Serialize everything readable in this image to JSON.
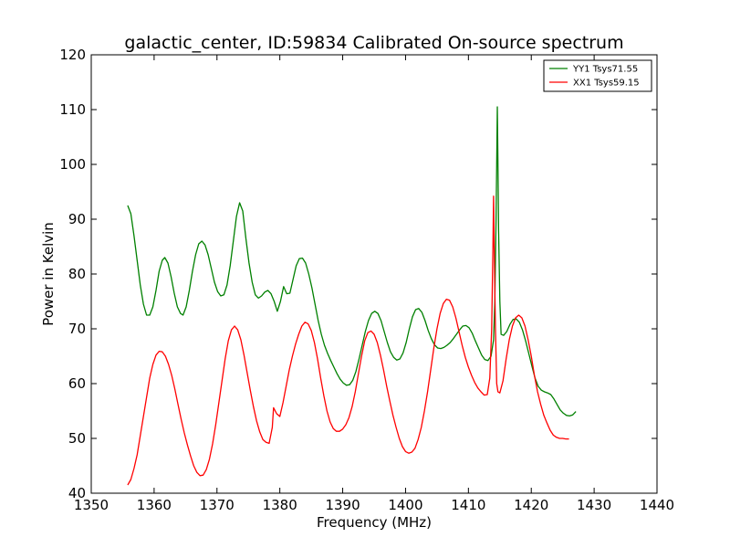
{
  "chart_data": {
    "type": "line",
    "title": "galactic_center, ID:59834 Calibrated On-source spectrum",
    "xlabel": "Frequency (MHz)",
    "ylabel": "Power in Kelvin",
    "xlim": [
      1350,
      1440
    ],
    "ylim": [
      40,
      120
    ],
    "xticks": [
      1350,
      1360,
      1370,
      1380,
      1390,
      1400,
      1410,
      1420,
      1430,
      1440
    ],
    "yticks": [
      40,
      50,
      60,
      70,
      80,
      90,
      100,
      110,
      120
    ],
    "grid": false,
    "legend_position": "top-right",
    "series": [
      {
        "name": "YY1 Tsys71.55",
        "color": "#008000",
        "points": [
          [
            1355.8,
            92.5
          ],
          [
            1356.3,
            91.0
          ],
          [
            1356.8,
            87.0
          ],
          [
            1357.3,
            82.5
          ],
          [
            1357.8,
            78.0
          ],
          [
            1358.3,
            74.5
          ],
          [
            1358.8,
            72.5
          ],
          [
            1359.3,
            72.5
          ],
          [
            1359.8,
            74.0
          ],
          [
            1360.3,
            77.0
          ],
          [
            1360.8,
            80.5
          ],
          [
            1361.3,
            82.5
          ],
          [
            1361.7,
            83.0
          ],
          [
            1362.2,
            82.0
          ],
          [
            1362.7,
            79.5
          ],
          [
            1363.2,
            76.5
          ],
          [
            1363.7,
            74.0
          ],
          [
            1364.2,
            72.8
          ],
          [
            1364.6,
            72.5
          ],
          [
            1365.1,
            74.0
          ],
          [
            1365.6,
            77.0
          ],
          [
            1366.1,
            80.5
          ],
          [
            1366.6,
            83.5
          ],
          [
            1367.1,
            85.5
          ],
          [
            1367.6,
            86.0
          ],
          [
            1368.1,
            85.3
          ],
          [
            1368.6,
            83.5
          ],
          [
            1369.1,
            81.0
          ],
          [
            1369.6,
            78.5
          ],
          [
            1370.1,
            76.8
          ],
          [
            1370.6,
            76.0
          ],
          [
            1371.1,
            76.2
          ],
          [
            1371.6,
            78.0
          ],
          [
            1372.1,
            81.5
          ],
          [
            1372.6,
            86.0
          ],
          [
            1373.1,
            90.5
          ],
          [
            1373.6,
            93.0
          ],
          [
            1374.1,
            91.5
          ],
          [
            1374.6,
            86.5
          ],
          [
            1375.1,
            82.0
          ],
          [
            1375.6,
            78.5
          ],
          [
            1376.1,
            76.2
          ],
          [
            1376.6,
            75.6
          ],
          [
            1377.1,
            76.0
          ],
          [
            1377.6,
            76.7
          ],
          [
            1378.1,
            77.0
          ],
          [
            1378.6,
            76.4
          ],
          [
            1379.1,
            75.0
          ],
          [
            1379.6,
            73.2
          ],
          [
            1380.1,
            75.0
          ],
          [
            1380.6,
            77.7
          ],
          [
            1381.1,
            76.4
          ],
          [
            1381.6,
            76.5
          ],
          [
            1382.1,
            79.0
          ],
          [
            1382.6,
            81.5
          ],
          [
            1383.1,
            82.8
          ],
          [
            1383.6,
            82.9
          ],
          [
            1384.1,
            82.0
          ],
          [
            1384.6,
            80.0
          ],
          [
            1385.1,
            77.5
          ],
          [
            1385.6,
            74.5
          ],
          [
            1386.1,
            71.5
          ],
          [
            1386.6,
            69.0
          ],
          [
            1387.1,
            67.0
          ],
          [
            1387.6,
            65.5
          ],
          [
            1388.1,
            64.2
          ],
          [
            1388.6,
            63.0
          ],
          [
            1389.1,
            61.8
          ],
          [
            1389.6,
            60.8
          ],
          [
            1390.1,
            60.1
          ],
          [
            1390.6,
            59.7
          ],
          [
            1391.1,
            59.8
          ],
          [
            1391.6,
            60.6
          ],
          [
            1392.1,
            62.2
          ],
          [
            1392.6,
            64.5
          ],
          [
            1393.1,
            67.0
          ],
          [
            1393.6,
            69.5
          ],
          [
            1394.1,
            71.5
          ],
          [
            1394.6,
            72.8
          ],
          [
            1395.1,
            73.2
          ],
          [
            1395.6,
            72.8
          ],
          [
            1396.1,
            71.5
          ],
          [
            1396.6,
            69.5
          ],
          [
            1397.1,
            67.5
          ],
          [
            1397.6,
            65.8
          ],
          [
            1398.1,
            64.8
          ],
          [
            1398.6,
            64.3
          ],
          [
            1399.1,
            64.5
          ],
          [
            1399.6,
            65.6
          ],
          [
            1400.1,
            67.5
          ],
          [
            1400.6,
            70.0
          ],
          [
            1401.1,
            72.2
          ],
          [
            1401.6,
            73.5
          ],
          [
            1402.1,
            73.7
          ],
          [
            1402.6,
            73.0
          ],
          [
            1403.1,
            71.5
          ],
          [
            1403.6,
            69.7
          ],
          [
            1404.1,
            68.2
          ],
          [
            1404.6,
            67.1
          ],
          [
            1405.1,
            66.5
          ],
          [
            1405.6,
            66.4
          ],
          [
            1406.1,
            66.6
          ],
          [
            1406.6,
            67.0
          ],
          [
            1407.1,
            67.5
          ],
          [
            1407.6,
            68.2
          ],
          [
            1408.1,
            69.0
          ],
          [
            1408.6,
            69.8
          ],
          [
            1409.1,
            70.5
          ],
          [
            1409.6,
            70.6
          ],
          [
            1410.1,
            70.2
          ],
          [
            1410.6,
            69.2
          ],
          [
            1411.1,
            67.8
          ],
          [
            1411.6,
            66.5
          ],
          [
            1412.1,
            65.2
          ],
          [
            1412.6,
            64.4
          ],
          [
            1413.1,
            64.2
          ],
          [
            1413.6,
            65.0
          ],
          [
            1414.0,
            68.0
          ],
          [
            1414.2,
            75.0
          ],
          [
            1414.4,
            90.0
          ],
          [
            1414.5,
            100.0
          ],
          [
            1414.6,
            110.5
          ],
          [
            1414.7,
            100.0
          ],
          [
            1414.8,
            88.0
          ],
          [
            1415.0,
            75.0
          ],
          [
            1415.2,
            69.0
          ],
          [
            1415.6,
            68.8
          ],
          [
            1416.1,
            69.5
          ],
          [
            1416.6,
            70.8
          ],
          [
            1417.1,
            71.7
          ],
          [
            1417.6,
            71.8
          ],
          [
            1418.1,
            71.2
          ],
          [
            1418.6,
            69.8
          ],
          [
            1419.1,
            67.8
          ],
          [
            1419.6,
            65.5
          ],
          [
            1420.1,
            63.2
          ],
          [
            1420.6,
            61.0
          ],
          [
            1421.1,
            59.5
          ],
          [
            1421.6,
            58.8
          ],
          [
            1422.1,
            58.5
          ],
          [
            1422.6,
            58.3
          ],
          [
            1423.1,
            58.0
          ],
          [
            1423.6,
            57.2
          ],
          [
            1424.1,
            56.2
          ],
          [
            1424.6,
            55.2
          ],
          [
            1425.1,
            54.6
          ],
          [
            1425.6,
            54.2
          ],
          [
            1426.1,
            54.1
          ],
          [
            1426.6,
            54.3
          ],
          [
            1427.1,
            54.9
          ]
        ]
      },
      {
        "name": "XX1 Tsys59.15",
        "color": "#ff0000",
        "points": [
          [
            1355.8,
            41.5
          ],
          [
            1356.3,
            42.5
          ],
          [
            1356.8,
            44.5
          ],
          [
            1357.3,
            47.0
          ],
          [
            1357.8,
            50.5
          ],
          [
            1358.3,
            54.0
          ],
          [
            1358.8,
            57.5
          ],
          [
            1359.3,
            61.0
          ],
          [
            1359.8,
            63.5
          ],
          [
            1360.3,
            65.2
          ],
          [
            1360.8,
            65.9
          ],
          [
            1361.3,
            65.8
          ],
          [
            1361.8,
            65.0
          ],
          [
            1362.3,
            63.5
          ],
          [
            1362.8,
            61.5
          ],
          [
            1363.3,
            59.0
          ],
          [
            1363.8,
            56.2
          ],
          [
            1364.3,
            53.5
          ],
          [
            1364.8,
            51.0
          ],
          [
            1365.3,
            48.8
          ],
          [
            1365.8,
            46.8
          ],
          [
            1366.3,
            45.0
          ],
          [
            1366.8,
            43.8
          ],
          [
            1367.3,
            43.2
          ],
          [
            1367.8,
            43.3
          ],
          [
            1368.3,
            44.3
          ],
          [
            1368.8,
            46.2
          ],
          [
            1369.3,
            49.0
          ],
          [
            1369.8,
            52.5
          ],
          [
            1370.3,
            56.5
          ],
          [
            1370.8,
            60.5
          ],
          [
            1371.3,
            64.5
          ],
          [
            1371.8,
            67.8
          ],
          [
            1372.3,
            69.8
          ],
          [
            1372.8,
            70.5
          ],
          [
            1373.3,
            69.8
          ],
          [
            1373.8,
            68.0
          ],
          [
            1374.3,
            65.2
          ],
          [
            1374.8,
            62.0
          ],
          [
            1375.3,
            58.8
          ],
          [
            1375.8,
            55.8
          ],
          [
            1376.3,
            53.2
          ],
          [
            1376.8,
            51.2
          ],
          [
            1377.3,
            49.8
          ],
          [
            1377.8,
            49.3
          ],
          [
            1378.3,
            49.1
          ],
          [
            1378.8,
            52.0
          ],
          [
            1379.0,
            55.6
          ],
          [
            1379.5,
            54.5
          ],
          [
            1380.0,
            54.0
          ],
          [
            1380.5,
            56.5
          ],
          [
            1381.0,
            59.5
          ],
          [
            1381.5,
            62.5
          ],
          [
            1382.0,
            65.0
          ],
          [
            1382.5,
            67.2
          ],
          [
            1383.0,
            69.0
          ],
          [
            1383.5,
            70.5
          ],
          [
            1384.0,
            71.2
          ],
          [
            1384.5,
            70.9
          ],
          [
            1385.0,
            69.7
          ],
          [
            1385.5,
            67.5
          ],
          [
            1386.0,
            64.5
          ],
          [
            1386.5,
            61.0
          ],
          [
            1387.0,
            57.8
          ],
          [
            1387.5,
            55.0
          ],
          [
            1388.0,
            53.0
          ],
          [
            1388.5,
            51.8
          ],
          [
            1389.0,
            51.3
          ],
          [
            1389.5,
            51.3
          ],
          [
            1390.0,
            51.7
          ],
          [
            1390.5,
            52.5
          ],
          [
            1391.0,
            53.8
          ],
          [
            1391.5,
            55.8
          ],
          [
            1392.0,
            58.5
          ],
          [
            1392.5,
            61.8
          ],
          [
            1393.0,
            65.0
          ],
          [
            1393.5,
            67.8
          ],
          [
            1394.0,
            69.3
          ],
          [
            1394.5,
            69.6
          ],
          [
            1395.0,
            69.0
          ],
          [
            1395.5,
            67.5
          ],
          [
            1396.0,
            65.2
          ],
          [
            1396.5,
            62.5
          ],
          [
            1397.0,
            59.5
          ],
          [
            1397.5,
            56.8
          ],
          [
            1398.0,
            54.2
          ],
          [
            1398.5,
            52.0
          ],
          [
            1399.0,
            50.0
          ],
          [
            1399.5,
            48.5
          ],
          [
            1400.0,
            47.6
          ],
          [
            1400.5,
            47.3
          ],
          [
            1401.0,
            47.5
          ],
          [
            1401.5,
            48.2
          ],
          [
            1402.0,
            49.8
          ],
          [
            1402.5,
            52.0
          ],
          [
            1403.0,
            55.0
          ],
          [
            1403.5,
            58.5
          ],
          [
            1404.0,
            62.5
          ],
          [
            1404.5,
            66.5
          ],
          [
            1405.0,
            70.0
          ],
          [
            1405.5,
            72.8
          ],
          [
            1406.0,
            74.6
          ],
          [
            1406.5,
            75.4
          ],
          [
            1407.0,
            75.2
          ],
          [
            1407.5,
            74.0
          ],
          [
            1408.0,
            72.0
          ],
          [
            1408.5,
            69.5
          ],
          [
            1409.0,
            67.0
          ],
          [
            1409.5,
            64.8
          ],
          [
            1410.0,
            63.0
          ],
          [
            1410.5,
            61.5
          ],
          [
            1411.0,
            60.2
          ],
          [
            1411.5,
            59.2
          ],
          [
            1412.0,
            58.5
          ],
          [
            1412.5,
            57.9
          ],
          [
            1413.0,
            58.0
          ],
          [
            1413.4,
            61.0
          ],
          [
            1413.7,
            70.0
          ],
          [
            1413.9,
            85.0
          ],
          [
            1414.0,
            94.2
          ],
          [
            1414.1,
            85.0
          ],
          [
            1414.3,
            70.0
          ],
          [
            1414.5,
            60.0
          ],
          [
            1414.7,
            58.5
          ],
          [
            1415.0,
            58.3
          ],
          [
            1415.5,
            60.5
          ],
          [
            1416.0,
            64.5
          ],
          [
            1416.5,
            68.0
          ],
          [
            1417.0,
            70.5
          ],
          [
            1417.5,
            72.0
          ],
          [
            1418.0,
            72.5
          ],
          [
            1418.5,
            72.0
          ],
          [
            1419.0,
            70.5
          ],
          [
            1419.5,
            68.0
          ],
          [
            1420.0,
            65.0
          ],
          [
            1420.5,
            61.5
          ],
          [
            1421.0,
            58.5
          ],
          [
            1421.5,
            56.2
          ],
          [
            1422.0,
            54.2
          ],
          [
            1422.5,
            52.8
          ],
          [
            1423.0,
            51.5
          ],
          [
            1423.5,
            50.6
          ],
          [
            1424.0,
            50.2
          ],
          [
            1424.5,
            50.0
          ],
          [
            1425.0,
            50.0
          ],
          [
            1425.5,
            49.9
          ],
          [
            1426.0,
            49.9
          ]
        ]
      }
    ]
  }
}
